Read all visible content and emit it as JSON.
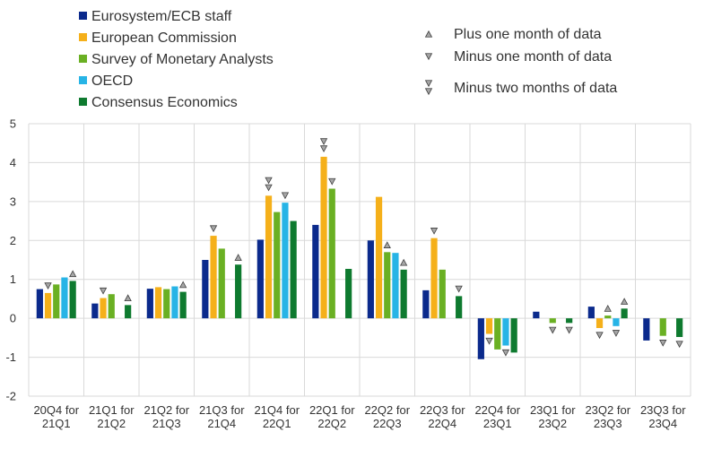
{
  "chart_data": {
    "type": "bar",
    "ylim": [
      -2,
      5
    ],
    "yticks": [
      "-2",
      "-1",
      "0",
      "1",
      "2",
      "3",
      "4",
      "5"
    ],
    "categories": [
      [
        "20Q4 for",
        "21Q1"
      ],
      [
        "21Q1 for",
        "21Q2"
      ],
      [
        "21Q2 for",
        "21Q3"
      ],
      [
        "21Q3 for",
        "21Q4"
      ],
      [
        "21Q4 for",
        "22Q1"
      ],
      [
        "22Q1 for",
        "22Q2"
      ],
      [
        "22Q2 for",
        "22Q3"
      ],
      [
        "22Q3 for",
        "22Q4"
      ],
      [
        "22Q4 for",
        "23Q1"
      ],
      [
        "23Q1 for",
        "23Q2"
      ],
      [
        "23Q2 for",
        "23Q3"
      ],
      [
        "23Q3 for",
        "23Q4"
      ]
    ],
    "series": [
      {
        "name": "Eurosystem/ECB staff",
        "color": "#0b2a8c",
        "values": [
          0.75,
          0.38,
          0.76,
          1.5,
          2.02,
          2.4,
          2.0,
          0.72,
          -1.05,
          0.17,
          0.3,
          -0.57
        ]
      },
      {
        "name": "European Commission",
        "color": "#f5b01a",
        "values": [
          0.65,
          0.52,
          0.8,
          2.12,
          3.15,
          4.15,
          3.12,
          2.06,
          -0.4,
          null,
          -0.25,
          null
        ]
      },
      {
        "name": "Survey of Monetary Analysts",
        "color": "#6ab023",
        "values": [
          0.87,
          0.62,
          0.75,
          1.79,
          2.73,
          3.33,
          1.7,
          1.25,
          -0.8,
          -0.12,
          0.07,
          -0.45
        ]
      },
      {
        "name": "OECD",
        "color": "#27b4e6",
        "values": [
          1.05,
          null,
          0.82,
          null,
          2.97,
          null,
          1.68,
          null,
          -0.7,
          null,
          -0.2,
          null
        ]
      },
      {
        "name": "Consensus Economics",
        "color": "#0e7a2f",
        "values": [
          0.96,
          0.34,
          0.68,
          1.38,
          2.5,
          1.27,
          1.25,
          0.57,
          -0.88,
          -0.12,
          0.25,
          -0.48
        ]
      }
    ],
    "markers": [
      {
        "category": 0,
        "series": 1,
        "type": "minus-one",
        "value": 0.65
      },
      {
        "category": 0,
        "series": 4,
        "type": "plus-one",
        "value": 0.96
      },
      {
        "category": 1,
        "series": 1,
        "type": "minus-one",
        "value": 0.52
      },
      {
        "category": 1,
        "series": 4,
        "type": "plus-one",
        "value": 0.34
      },
      {
        "category": 2,
        "series": 4,
        "type": "plus-one",
        "value": 0.68
      },
      {
        "category": 3,
        "series": 1,
        "type": "minus-one",
        "value": 2.12
      },
      {
        "category": 3,
        "series": 4,
        "type": "plus-one",
        "value": 1.38
      },
      {
        "category": 4,
        "series": 1,
        "type": "minus-two",
        "value": 3.15
      },
      {
        "category": 4,
        "series": 3,
        "type": "minus-one",
        "value": 2.97
      },
      {
        "category": 5,
        "series": 1,
        "type": "minus-two",
        "value": 4.15
      },
      {
        "category": 5,
        "series": 2,
        "type": "minus-one",
        "value": 3.33
      },
      {
        "category": 6,
        "series": 2,
        "type": "plus-one",
        "value": 1.7
      },
      {
        "category": 6,
        "series": 4,
        "type": "plus-one",
        "value": 1.25
      },
      {
        "category": 7,
        "series": 1,
        "type": "minus-one",
        "value": 2.06
      },
      {
        "category": 7,
        "series": 4,
        "type": "minus-one",
        "value": 0.57
      },
      {
        "category": 8,
        "series": 1,
        "type": "minus-one",
        "value": -0.4
      },
      {
        "category": 8,
        "series": 3,
        "type": "minus-one",
        "value": -0.7
      },
      {
        "category": 9,
        "series": 2,
        "type": "minus-one",
        "value": -0.12
      },
      {
        "category": 9,
        "series": 4,
        "type": "minus-one",
        "value": -0.12
      },
      {
        "category": 10,
        "series": 1,
        "type": "minus-one",
        "value": -0.25
      },
      {
        "category": 10,
        "series": 2,
        "type": "plus-one",
        "value": 0.07
      },
      {
        "category": 10,
        "series": 3,
        "type": "minus-one",
        "value": -0.2
      },
      {
        "category": 10,
        "series": 4,
        "type": "plus-one",
        "value": 0.25
      },
      {
        "category": 11,
        "series": 2,
        "type": "minus-one",
        "value": -0.45
      },
      {
        "category": 11,
        "series": 4,
        "type": "minus-one",
        "value": -0.48
      }
    ],
    "marker_legend": [
      {
        "type": "plus-one",
        "label": "Plus one month of data"
      },
      {
        "type": "minus-one",
        "label": "Minus one month of data"
      },
      {
        "type": "minus-two",
        "label": "Minus two months of data"
      }
    ]
  }
}
